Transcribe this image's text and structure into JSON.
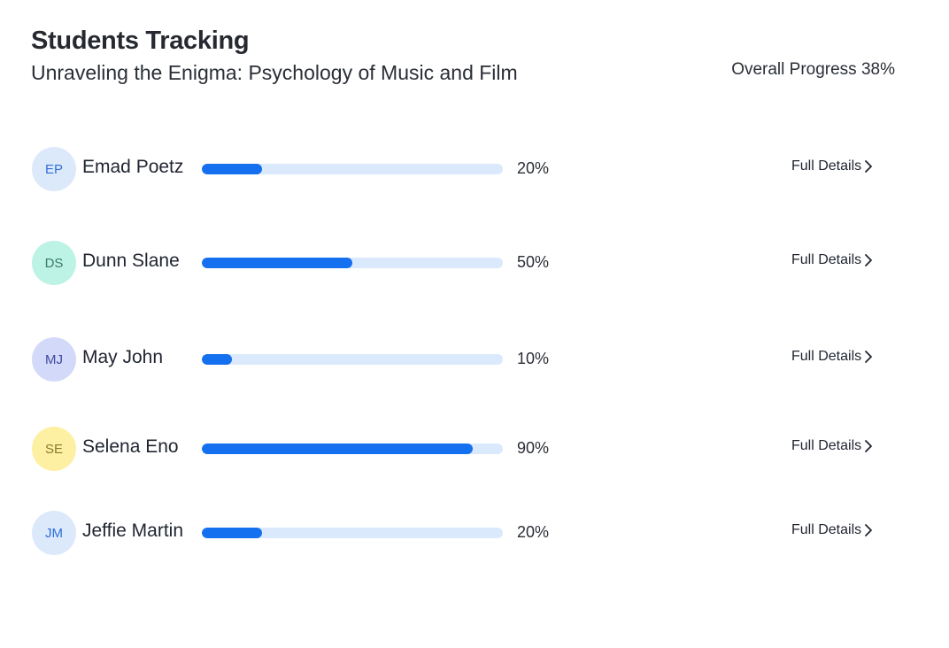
{
  "header": {
    "title": "Students Tracking",
    "course": "Unraveling the Enigma: Psychology of Music and Film",
    "overall_label": "Overall Progress",
    "overall_value": "38%"
  },
  "details_label": "Full Details",
  "details_icon": "chevron-right-icon",
  "colors": {
    "bar_fill": "#1570ef",
    "bar_track": "#dbe9fc"
  },
  "students": [
    {
      "initials": "EP",
      "name": "Emad Poetz",
      "progress": 20,
      "progress_label": "20%",
      "avatar_bg": "#dce9fb",
      "avatar_fg": "#2f6fd6"
    },
    {
      "initials": "DS",
      "name": "Dunn Slane",
      "progress": 50,
      "progress_label": "50%",
      "avatar_bg": "#bdf3e4",
      "avatar_fg": "#3c7a68"
    },
    {
      "initials": "MJ",
      "name": "May John",
      "progress": 10,
      "progress_label": "10%",
      "avatar_bg": "#d3d9f9",
      "avatar_fg": "#3c4aa0"
    },
    {
      "initials": "SE",
      "name": "Selena Eno",
      "progress": 90,
      "progress_label": "90%",
      "avatar_bg": "#fdf0a2",
      "avatar_fg": "#8a7a2a"
    },
    {
      "initials": "JM",
      "name": "Jeffie Martin",
      "progress": 20,
      "progress_label": "20%",
      "avatar_bg": "#dce9fb",
      "avatar_fg": "#2f6fd6"
    }
  ]
}
